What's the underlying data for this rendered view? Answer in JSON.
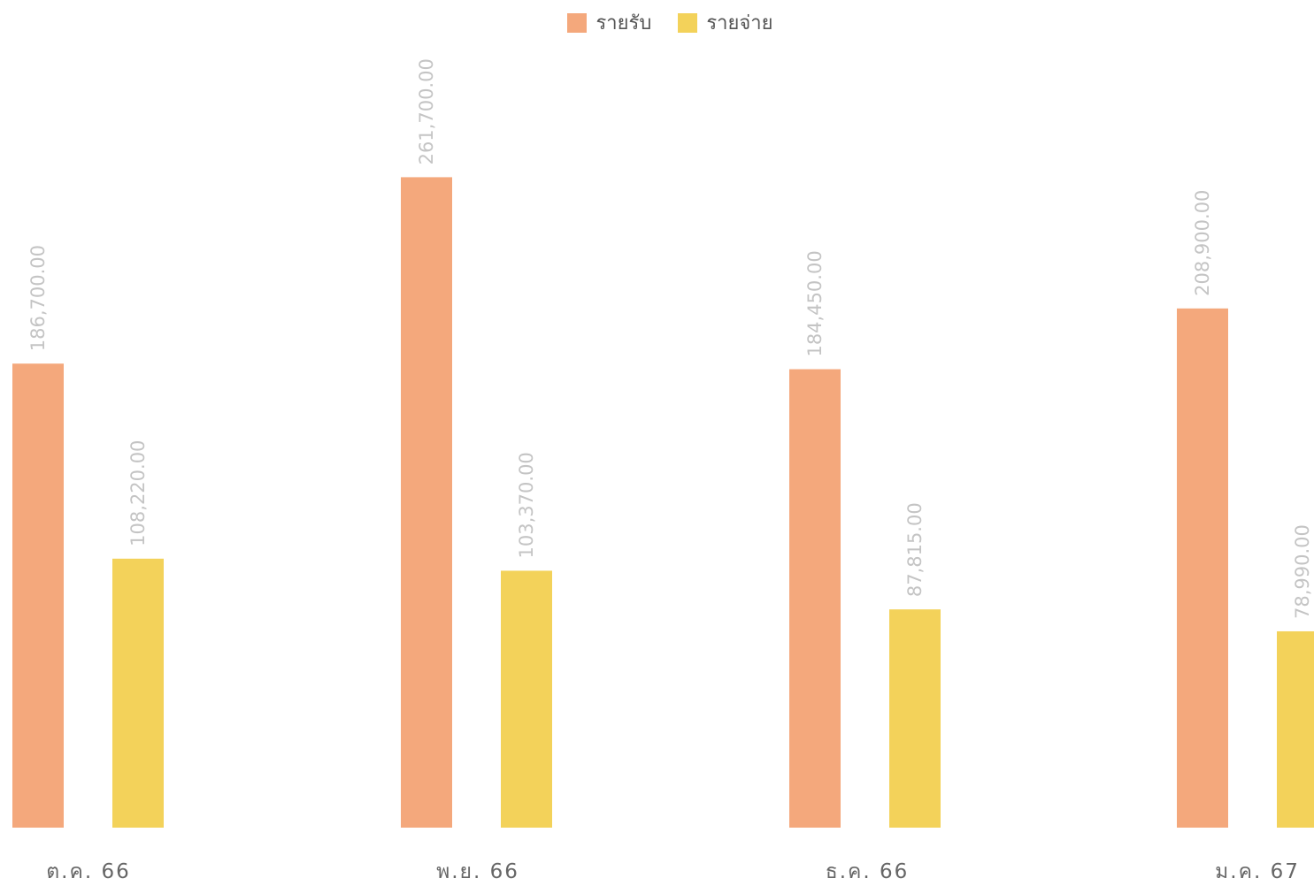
{
  "chart_data": {
    "type": "bar",
    "categories": [
      "ต.ค. 66",
      "พ.ย. 66",
      "ธ.ค. 66",
      "ม.ค. 67"
    ],
    "series": [
      {
        "name": "รายรับ",
        "color": "#f4a87c",
        "values": [
          186700,
          261700,
          184450,
          208900
        ],
        "labels": [
          "186,700.00",
          "261,700.00",
          "184,450.00",
          "208,900.00"
        ]
      },
      {
        "name": "รายจ่าย",
        "color": "#f3d25a",
        "values": [
          108220,
          103370,
          87815,
          78990
        ],
        "labels": [
          "108,220.00",
          "103,370.00",
          "87,815.00",
          "78,990.00"
        ]
      }
    ],
    "ylim": [
      0,
      333000
    ],
    "grid": false,
    "legend_position": "top-center",
    "value_label_orientation": "vertical"
  }
}
